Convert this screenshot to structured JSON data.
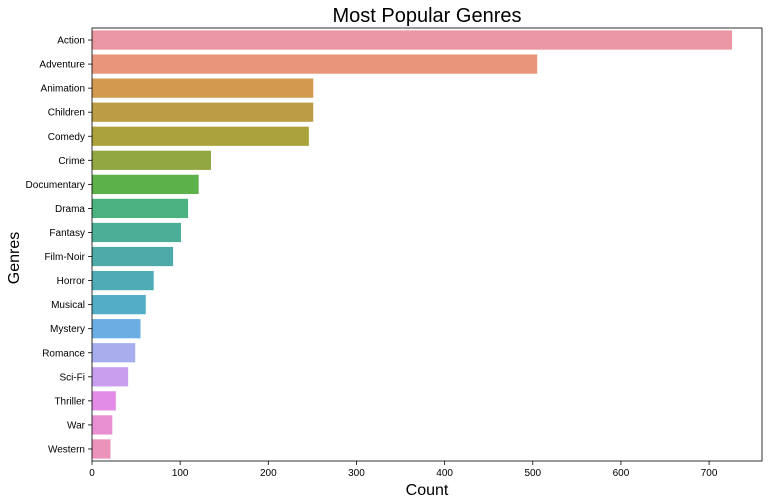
{
  "chart_data": {
    "type": "bar",
    "orientation": "horizontal",
    "title": "Most Popular Genres",
    "xlabel": "Count",
    "ylabel": "Genres",
    "xlim": [
      0,
      760
    ],
    "xticks": [
      0,
      100,
      200,
      300,
      400,
      500,
      600,
      700
    ],
    "grid": false,
    "legend": "none",
    "categories": [
      "Action",
      "Adventure",
      "Animation",
      "Children",
      "Comedy",
      "Crime",
      "Documentary",
      "Drama",
      "Fantasy",
      "Film-Noir",
      "Horror",
      "Musical",
      "Mystery",
      "Romance",
      "Sci-Fi",
      "Thriller",
      "War",
      "Western"
    ],
    "values": [
      726,
      505,
      251,
      251,
      246,
      135,
      121,
      109,
      101,
      92,
      70,
      61,
      55,
      49,
      41,
      27,
      23,
      21
    ],
    "colors": [
      "#ea96a3",
      "#e8957a",
      "#d39a4d",
      "#bb9d45",
      "#aca23c",
      "#92a641",
      "#5cb149",
      "#4bb17f",
      "#4cae97",
      "#4daaa8",
      "#4eacb6",
      "#52aec6",
      "#6aaee3",
      "#a7aded",
      "#c99eee",
      "#e28ce8",
      "#e88fd2",
      "#eb93bb"
    ]
  }
}
